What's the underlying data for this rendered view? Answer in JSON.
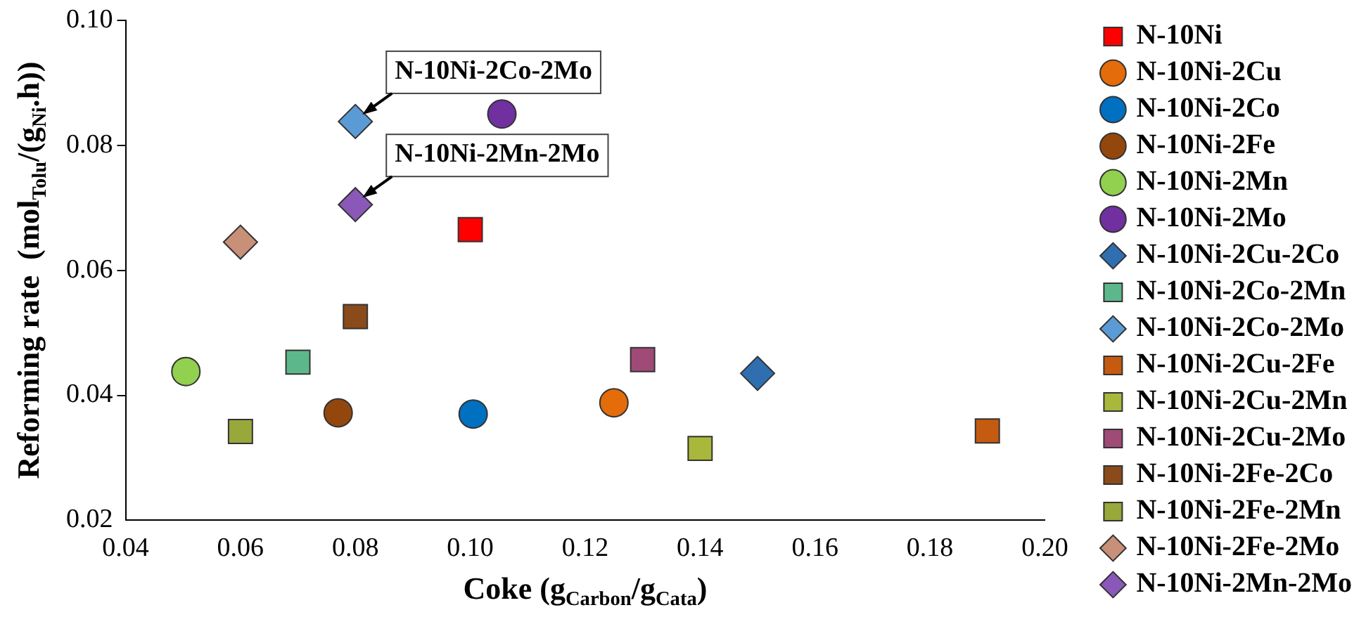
{
  "chart_data": {
    "type": "scatter",
    "xlabel": "Coke (g$_{Carbon}$/g$_{Cata}$)",
    "ylabel": "Reforming rate  (mol$_{Tolu}$/(g$_{Ni}$.h))",
    "xlim": [
      0.04,
      0.2
    ],
    "xticks": [
      {
        "value": 0.04,
        "label": "0.04"
      },
      {
        "value": 0.06,
        "label": "0.06"
      },
      {
        "value": 0.08,
        "label": "0.08"
      },
      {
        "value": 0.1,
        "label": "0.10"
      },
      {
        "value": 0.12,
        "label": "0.12"
      },
      {
        "value": 0.14,
        "label": "0.14"
      },
      {
        "value": 0.16,
        "label": "0.16"
      },
      {
        "value": 0.18,
        "label": "0.18"
      },
      {
        "value": 0.2,
        "label": "0.20"
      }
    ],
    "ylim": [
      0.02,
      0.1
    ],
    "yticks": [
      {
        "value": 0.02,
        "label": "0.02"
      },
      {
        "value": 0.04,
        "label": "0.04"
      },
      {
        "value": 0.06,
        "label": "0.06"
      },
      {
        "value": 0.08,
        "label": "0.08"
      },
      {
        "value": 0.1,
        "label": "0.10"
      }
    ],
    "grid": false,
    "legend": "right",
    "series": [
      {
        "name": "N-10Ni",
        "color": "#ff0000",
        "marker": "square",
        "x": [
          0.1
        ],
        "values": [
          0.0665
        ]
      },
      {
        "name": "N-10Ni-2Cu",
        "color": "#e46c0a",
        "marker": "circle",
        "x": [
          0.125
        ],
        "values": [
          0.0388
        ]
      },
      {
        "name": "N-10Ni-2Co",
        "color": "#0070c0",
        "marker": "circle",
        "x": [
          0.1005
        ],
        "values": [
          0.037
        ]
      },
      {
        "name": "N-10Ni-2Fe",
        "color": "#94470c",
        "marker": "circle",
        "x": [
          0.077
        ],
        "values": [
          0.0372
        ]
      },
      {
        "name": "N-10Ni-2Mn",
        "color": "#92d050",
        "marker": "circle",
        "x": [
          0.0505
        ],
        "values": [
          0.0438
        ]
      },
      {
        "name": "N-10Ni-2Mo",
        "color": "#7030a0",
        "marker": "circle",
        "x": [
          0.1055
        ],
        "values": [
          0.085
        ]
      },
      {
        "name": "N-10Ni-2Cu-2Co",
        "color": "#2f6fb0",
        "marker": "diamond",
        "x": [
          0.15
        ],
        "values": [
          0.0435
        ]
      },
      {
        "name": "N-10Ni-2Co-2Mn",
        "color": "#5cb88a",
        "marker": "square",
        "x": [
          0.07
        ],
        "values": [
          0.0453
        ]
      },
      {
        "name": "N-10Ni-2Co-2Mo",
        "color": "#5b9bd5",
        "marker": "diamond",
        "x": [
          0.08
        ],
        "values": [
          0.0838
        ]
      },
      {
        "name": "N-10Ni-2Cu-2Fe",
        "color": "#c55a11",
        "marker": "square",
        "x": [
          0.19
        ],
        "values": [
          0.0343
        ]
      },
      {
        "name": "N-10Ni-2Cu-2Mn",
        "color": "#a9b83a",
        "marker": "square",
        "x": [
          0.14
        ],
        "values": [
          0.0315
        ]
      },
      {
        "name": "N-10Ni-2Cu-2Mo",
        "color": "#a04a78",
        "marker": "square",
        "x": [
          0.13
        ],
        "values": [
          0.0457
        ]
      },
      {
        "name": "N-10Ni-2Fe-2Co",
        "color": "#8a4a1a",
        "marker": "square",
        "x": [
          0.08
        ],
        "values": [
          0.0526
        ]
      },
      {
        "name": "N-10Ni-2Fe-2Mn",
        "color": "#98a83a",
        "marker": "square",
        "x": [
          0.06
        ],
        "values": [
          0.0342
        ]
      },
      {
        "name": "N-10Ni-2Fe-2Mo",
        "color": "#c89078",
        "marker": "diamond",
        "x": [
          0.06
        ],
        "values": [
          0.0645
        ]
      },
      {
        "name": "N-10Ni-2Mn-2Mo",
        "color": "#8a58b8",
        "marker": "diamond",
        "x": [
          0.08
        ],
        "values": [
          0.0705
        ]
      }
    ],
    "annotations": [
      {
        "text": "N-10Ni-2Co-2Mo",
        "x": 0.08,
        "y": 0.0838
      },
      {
        "text": "N-10Ni-2Mn-2Mo",
        "x": 0.08,
        "y": 0.0705
      }
    ]
  }
}
